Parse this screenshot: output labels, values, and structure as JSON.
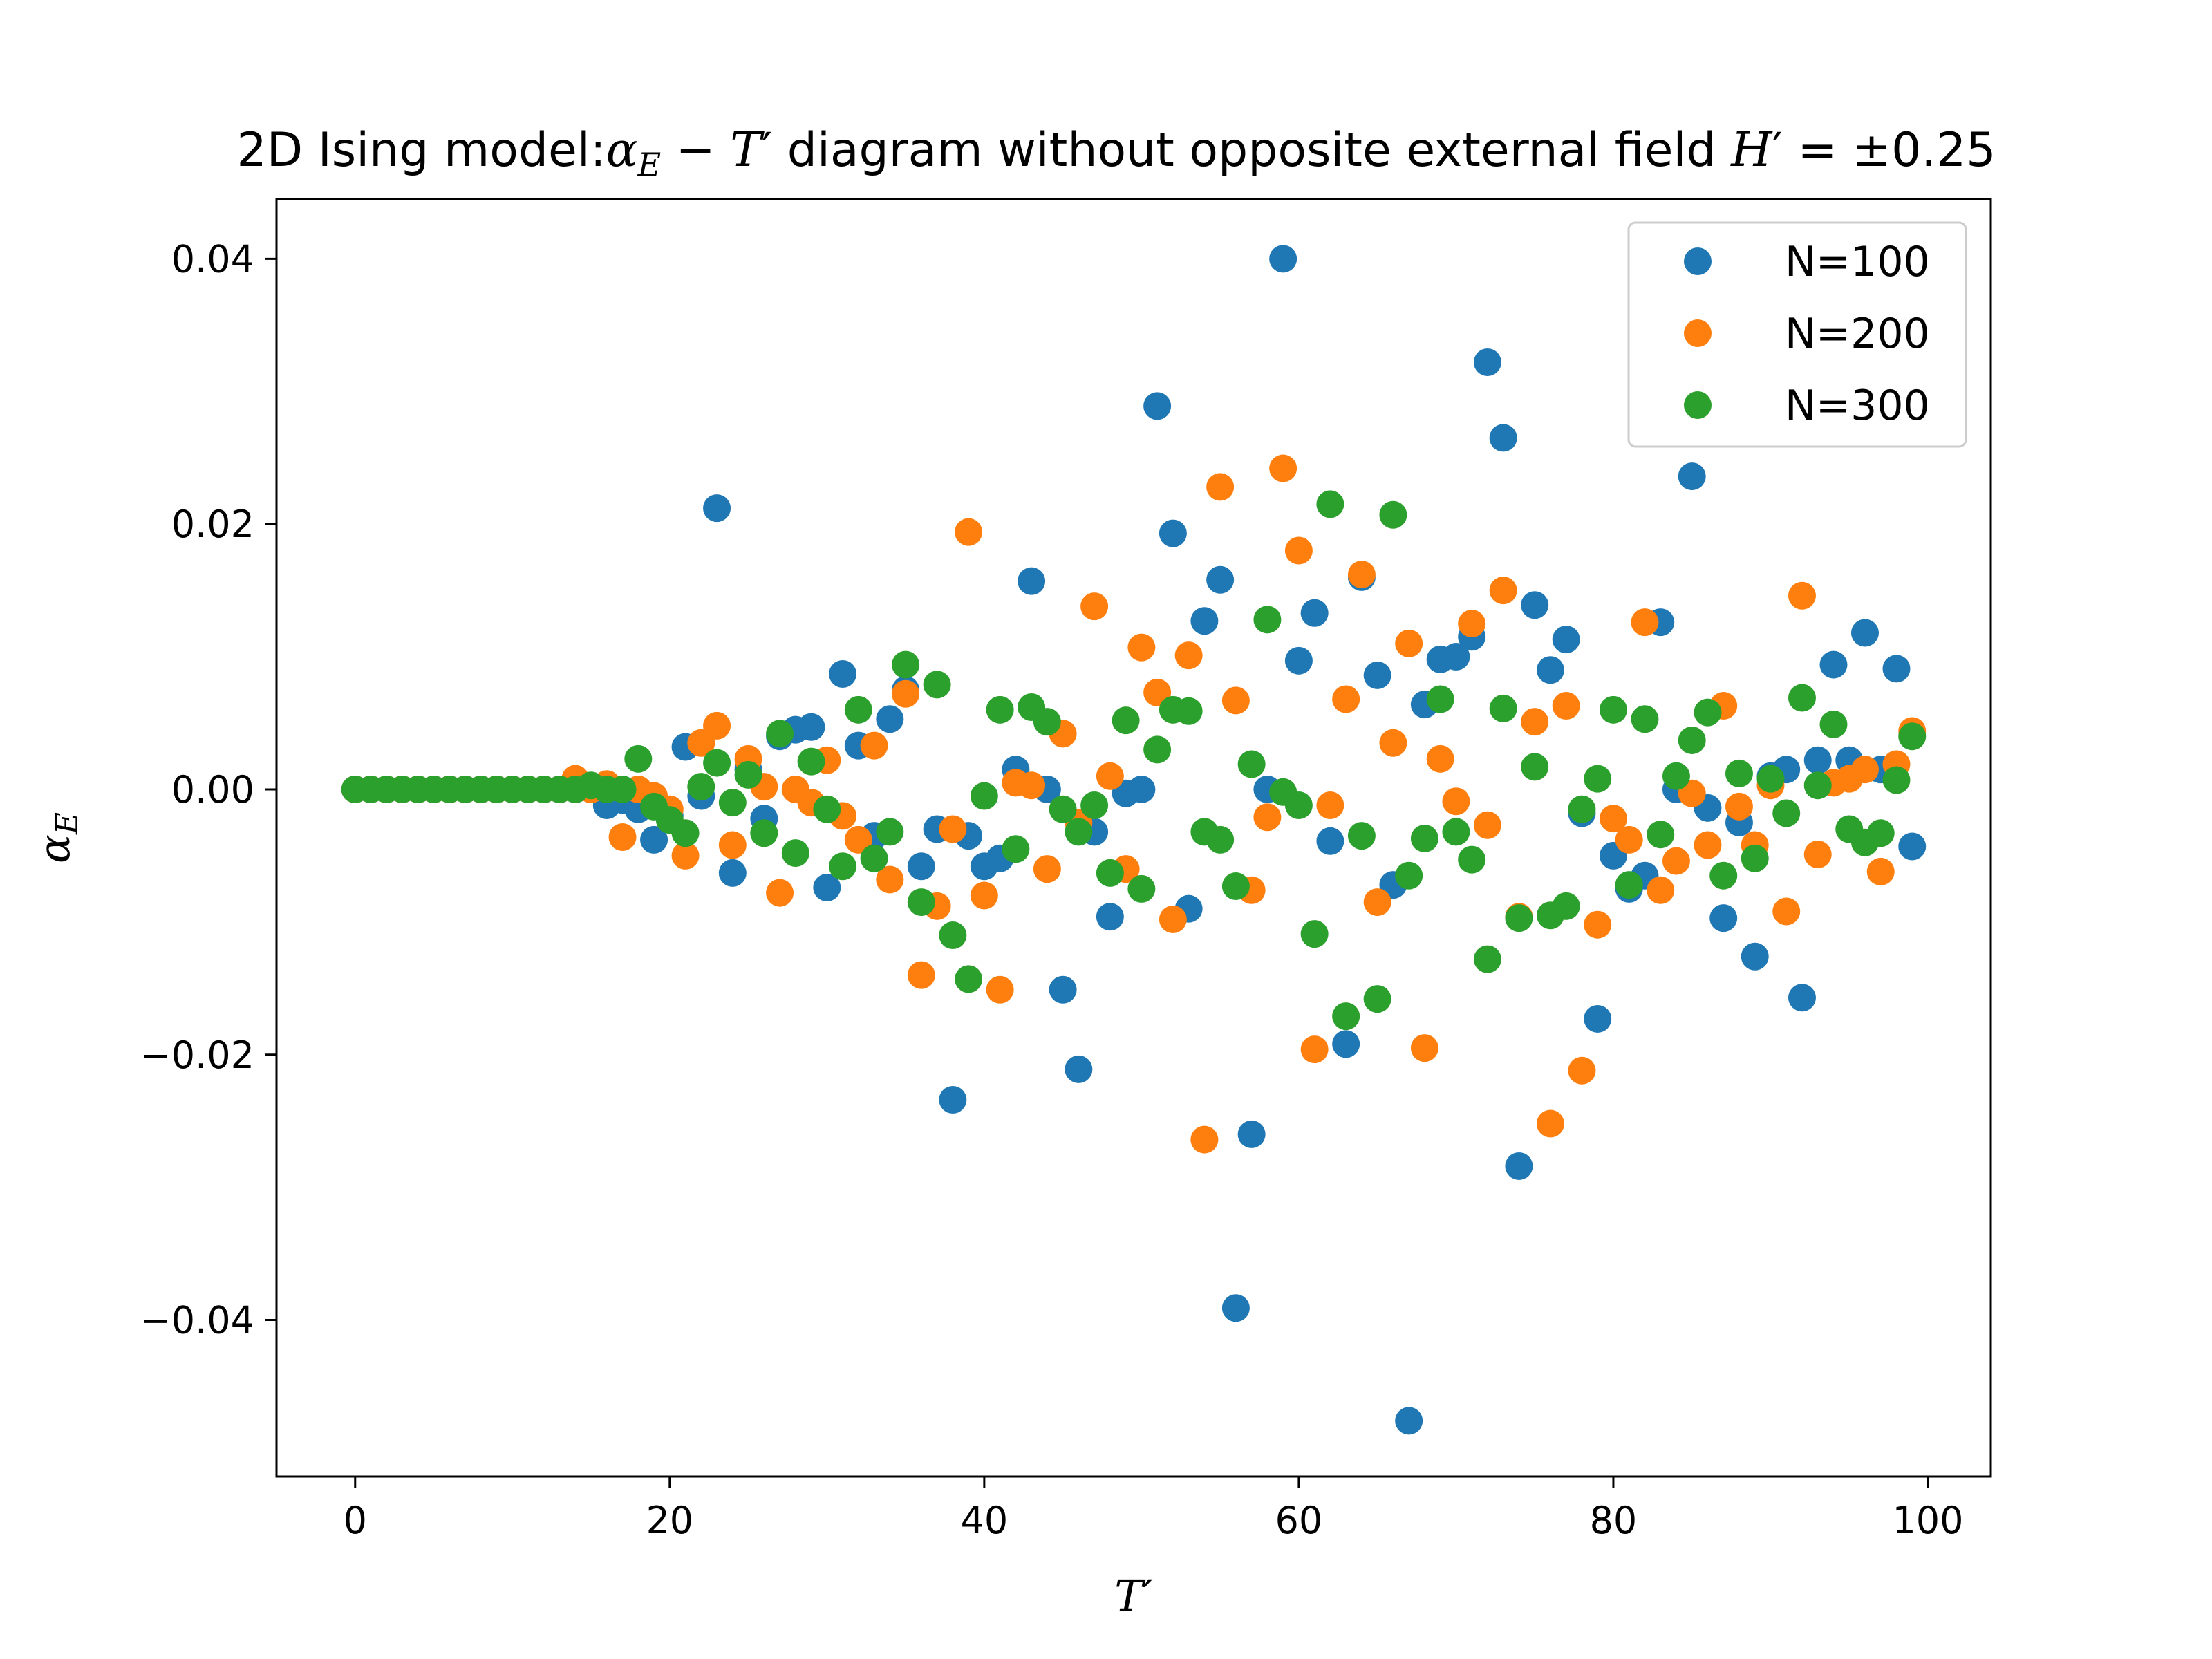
{
  "chart_data": {
    "type": "scatter",
    "title": "2D Ising model:αE − T′ diagram without opposite external field H′ = ±0.25",
    "title_parts": {
      "prefix": "2D Ising model:",
      "alpha": "α",
      "alpha_sub": "E",
      "minus": " − ",
      "T": "T",
      "prime": "′",
      "middle": " diagram without opposite external field ",
      "H": "H",
      "eq": "′ = ±0.25"
    },
    "xlabel": "T′",
    "ylabel": "αE",
    "ylabel_parts": {
      "alpha": "α",
      "sub": "E"
    },
    "xlim": [
      -5,
      104
    ],
    "ylim": [
      -0.0518,
      0.0445
    ],
    "xticks": [
      0,
      20,
      40,
      60,
      80,
      100
    ],
    "xtick_labels": [
      "0",
      "20",
      "40",
      "60",
      "80",
      "100"
    ],
    "yticks": [
      -0.04,
      -0.02,
      0.0,
      0.02,
      0.04
    ],
    "ytick_labels": [
      "−0.04",
      "−0.02",
      "0.00",
      "0.02",
      "0.04"
    ],
    "grid": false,
    "legend": "top-right",
    "series": [
      {
        "name": "N=100",
        "color": "#1f77b4",
        "points": [
          [
            0,
            0
          ],
          [
            1,
            0
          ],
          [
            2,
            0
          ],
          [
            3,
            0
          ],
          [
            4,
            0
          ],
          [
            5,
            0
          ],
          [
            6,
            0
          ],
          [
            7,
            0
          ],
          [
            8,
            0
          ],
          [
            9,
            0
          ],
          [
            10,
            0
          ],
          [
            11,
            0
          ],
          [
            12,
            0
          ],
          [
            13,
            0
          ],
          [
            14,
            0
          ],
          [
            15,
            0
          ],
          [
            16,
            -0.0012
          ],
          [
            17,
            -0.0008
          ],
          [
            18,
            -0.0015
          ],
          [
            19,
            -0.0038
          ],
          [
            20,
            -0.002
          ],
          [
            21,
            0.0032
          ],
          [
            22,
            -0.0005
          ],
          [
            23,
            0.0212
          ],
          [
            24,
            -0.0063
          ],
          [
            25,
            0.0015
          ],
          [
            26,
            -0.0022
          ],
          [
            27,
            0.004
          ],
          [
            28,
            0.0045
          ],
          [
            29,
            0.0047
          ],
          [
            30,
            -0.0074
          ],
          [
            31,
            0.0087
          ],
          [
            32,
            0.0033
          ],
          [
            33,
            -0.0035
          ],
          [
            34,
            0.0053
          ],
          [
            35,
            0.0075
          ],
          [
            36,
            -0.0058
          ],
          [
            37,
            -0.003
          ],
          [
            38,
            -0.0234
          ],
          [
            39,
            -0.0035
          ],
          [
            40,
            -0.0058
          ],
          [
            41,
            -0.0052
          ],
          [
            42,
            0.0015
          ],
          [
            43,
            0.0157
          ],
          [
            44,
            0
          ],
          [
            45,
            -0.0151
          ],
          [
            46,
            -0.0211
          ],
          [
            47,
            -0.0032
          ],
          [
            48,
            -0.0096
          ],
          [
            49,
            -0.0003
          ],
          [
            50,
            0
          ],
          [
            51,
            0.0289
          ],
          [
            52,
            0.0193
          ],
          [
            53,
            -0.009
          ],
          [
            54,
            0.0127
          ],
          [
            55,
            0.0158
          ],
          [
            56,
            -0.0391
          ],
          [
            57,
            -0.026
          ],
          [
            58,
            0
          ],
          [
            59,
            0.04
          ],
          [
            60,
            0.0097
          ],
          [
            61,
            0.0133
          ],
          [
            62,
            -0.0039
          ],
          [
            63,
            -0.0192
          ],
          [
            64,
            0.016
          ],
          [
            65,
            0.0086
          ],
          [
            66,
            -0.0072
          ],
          [
            67,
            -0.0476
          ],
          [
            68,
            0.0064
          ],
          [
            69,
            0.0098
          ],
          [
            70,
            0.01
          ],
          [
            71,
            0.0115
          ],
          [
            72,
            0.0322
          ],
          [
            73,
            0.0265
          ],
          [
            74,
            -0.0284
          ],
          [
            75,
            0.0139
          ],
          [
            76,
            0.009
          ],
          [
            77,
            0.0113
          ],
          [
            78,
            -0.0018
          ],
          [
            79,
            -0.0173
          ],
          [
            80,
            -0.005
          ],
          [
            81,
            -0.0075
          ],
          [
            82,
            -0.0065
          ],
          [
            83,
            0.0126
          ],
          [
            84,
            0
          ],
          [
            85,
            0.0236
          ],
          [
            86,
            -0.0014
          ],
          [
            87,
            -0.0097
          ],
          [
            88,
            -0.0025
          ],
          [
            89,
            -0.0126
          ],
          [
            90,
            0.001
          ],
          [
            91,
            0.0015
          ],
          [
            92,
            -0.0157
          ],
          [
            93,
            0.0022
          ],
          [
            94,
            0.0094
          ],
          [
            95,
            0.0022
          ],
          [
            96,
            0.0118
          ],
          [
            97,
            0.0015
          ],
          [
            98,
            0.0091
          ],
          [
            99,
            -0.0043
          ]
        ]
      },
      {
        "name": "N=200",
        "color": "#ff7f0e",
        "points": [
          [
            0,
            0
          ],
          [
            1,
            0
          ],
          [
            2,
            0
          ],
          [
            3,
            0
          ],
          [
            4,
            0
          ],
          [
            5,
            0
          ],
          [
            6,
            0
          ],
          [
            7,
            0
          ],
          [
            8,
            0
          ],
          [
            9,
            0
          ],
          [
            10,
            0
          ],
          [
            11,
            0
          ],
          [
            12,
            0
          ],
          [
            13,
            0
          ],
          [
            14,
            0.0008
          ],
          [
            15,
            0
          ],
          [
            16,
            0.0004
          ],
          [
            17,
            -0.0036
          ],
          [
            18,
            0
          ],
          [
            19,
            -0.0005
          ],
          [
            20,
            -0.0015
          ],
          [
            21,
            -0.005
          ],
          [
            22,
            0.0035
          ],
          [
            23,
            0.0048
          ],
          [
            24,
            -0.0042
          ],
          [
            25,
            0.0023
          ],
          [
            26,
            0.0002
          ],
          [
            27,
            -0.0078
          ],
          [
            28,
            0
          ],
          [
            29,
            -0.001
          ],
          [
            30,
            0.0022
          ],
          [
            31,
            -0.002
          ],
          [
            32,
            -0.0038
          ],
          [
            33,
            0.0033
          ],
          [
            34,
            -0.0068
          ],
          [
            35,
            0.0072
          ],
          [
            36,
            -0.014
          ],
          [
            37,
            -0.0088
          ],
          [
            38,
            -0.003
          ],
          [
            39,
            0.0194
          ],
          [
            40,
            -0.008
          ],
          [
            41,
            -0.0151
          ],
          [
            42,
            0.0005
          ],
          [
            43,
            0.0003
          ],
          [
            44,
            -0.006
          ],
          [
            45,
            0.0042
          ],
          [
            46,
            -0.0025
          ],
          [
            47,
            0.0138
          ],
          [
            48,
            0.001
          ],
          [
            49,
            -0.006
          ],
          [
            50,
            0.0107
          ],
          [
            51,
            0.0073
          ],
          [
            52,
            -0.0098
          ],
          [
            53,
            0.0101
          ],
          [
            54,
            -0.0264
          ],
          [
            55,
            0.0228
          ],
          [
            56,
            0.0067
          ],
          [
            57,
            -0.0076
          ],
          [
            58,
            -0.0021
          ],
          [
            59,
            0.0242
          ],
          [
            60,
            0.018
          ],
          [
            61,
            -0.0196
          ],
          [
            62,
            -0.0012
          ],
          [
            63,
            0.0068
          ],
          [
            64,
            0.0162
          ],
          [
            65,
            -0.0085
          ],
          [
            66,
            0.0035
          ],
          [
            67,
            0.011
          ],
          [
            68,
            -0.0195
          ],
          [
            69,
            0.0023
          ],
          [
            70,
            -0.0009
          ],
          [
            71,
            0.0125
          ],
          [
            72,
            -0.0027
          ],
          [
            73,
            0.015
          ],
          [
            74,
            -0.0096
          ],
          [
            75,
            0.0051
          ],
          [
            76,
            -0.0252
          ],
          [
            77,
            0.0063
          ],
          [
            78,
            -0.0212
          ],
          [
            79,
            -0.0102
          ],
          [
            80,
            -0.0022
          ],
          [
            81,
            -0.0038
          ],
          [
            82,
            0.0126
          ],
          [
            83,
            -0.0076
          ],
          [
            84,
            -0.0054
          ],
          [
            85,
            -0.0003
          ],
          [
            86,
            -0.0042
          ],
          [
            87,
            0.0063
          ],
          [
            88,
            -0.0013
          ],
          [
            89,
            -0.0042
          ],
          [
            90,
            0.0003
          ],
          [
            91,
            -0.0092
          ],
          [
            92,
            0.0146
          ],
          [
            93,
            -0.0049
          ],
          [
            94,
            0.0005
          ],
          [
            95,
            0.0008
          ],
          [
            96,
            0.0015
          ],
          [
            97,
            -0.0062
          ],
          [
            98,
            0.0019
          ],
          [
            99,
            0.0044
          ]
        ]
      },
      {
        "name": "N=300",
        "color": "#2ca02c",
        "points": [
          [
            0,
            0
          ],
          [
            1,
            0
          ],
          [
            2,
            0
          ],
          [
            3,
            0
          ],
          [
            4,
            0
          ],
          [
            5,
            0
          ],
          [
            6,
            0
          ],
          [
            7,
            0
          ],
          [
            8,
            0
          ],
          [
            9,
            0
          ],
          [
            10,
            0
          ],
          [
            11,
            0
          ],
          [
            12,
            0
          ],
          [
            13,
            0
          ],
          [
            14,
            0
          ],
          [
            15,
            0.0003
          ],
          [
            16,
            0
          ],
          [
            17,
            0
          ],
          [
            18,
            0.0023
          ],
          [
            19,
            -0.0013
          ],
          [
            20,
            -0.0023
          ],
          [
            21,
            -0.0033
          ],
          [
            22,
            0.0002
          ],
          [
            23,
            0.002
          ],
          [
            24,
            -0.001
          ],
          [
            25,
            0.0011
          ],
          [
            26,
            -0.0033
          ],
          [
            27,
            0.0042
          ],
          [
            28,
            -0.0048
          ],
          [
            29,
            0.0021
          ],
          [
            30,
            -0.0015
          ],
          [
            31,
            -0.0058
          ],
          [
            32,
            0.006
          ],
          [
            33,
            -0.0052
          ],
          [
            34,
            -0.0032
          ],
          [
            35,
            0.0094
          ],
          [
            36,
            -0.0085
          ],
          [
            37,
            0.0079
          ],
          [
            38,
            -0.011
          ],
          [
            39,
            -0.0143
          ],
          [
            40,
            -0.0005
          ],
          [
            41,
            0.006
          ],
          [
            42,
            -0.0045
          ],
          [
            43,
            0.0062
          ],
          [
            44,
            0.0051
          ],
          [
            45,
            -0.0015
          ],
          [
            46,
            -0.0032
          ],
          [
            47,
            -0.0012
          ],
          [
            48,
            -0.0063
          ],
          [
            49,
            0.0052
          ],
          [
            50,
            -0.0075
          ],
          [
            51,
            0.003
          ],
          [
            52,
            0.006
          ],
          [
            53,
            0.0059
          ],
          [
            54,
            -0.0032
          ],
          [
            55,
            -0.0038
          ],
          [
            56,
            -0.0073
          ],
          [
            57,
            0.0019
          ],
          [
            58,
            0.0128
          ],
          [
            59,
            -0.0002
          ],
          [
            60,
            -0.0012
          ],
          [
            61,
            -0.0109
          ],
          [
            62,
            0.0215
          ],
          [
            63,
            -0.0171
          ],
          [
            64,
            -0.0035
          ],
          [
            65,
            -0.0158
          ],
          [
            66,
            0.0207
          ],
          [
            67,
            -0.0065
          ],
          [
            68,
            -0.0037
          ],
          [
            69,
            0.0068
          ],
          [
            70,
            -0.0032
          ],
          [
            71,
            -0.0053
          ],
          [
            72,
            -0.0128
          ],
          [
            73,
            0.0061
          ],
          [
            74,
            -0.0097
          ],
          [
            75,
            0.0017
          ],
          [
            76,
            -0.0095
          ],
          [
            77,
            -0.0088
          ],
          [
            78,
            -0.0015
          ],
          [
            79,
            0.0008
          ],
          [
            80,
            0.006
          ],
          [
            81,
            -0.0072
          ],
          [
            82,
            0.0053
          ],
          [
            83,
            -0.0034
          ],
          [
            84,
            0.001
          ],
          [
            85,
            0.0037
          ],
          [
            86,
            0.0058
          ],
          [
            87,
            -0.0065
          ],
          [
            88,
            0.0012
          ],
          [
            89,
            -0.0052
          ],
          [
            90,
            0.0008
          ],
          [
            91,
            -0.0018
          ],
          [
            92,
            0.0069
          ],
          [
            93,
            0.0003
          ],
          [
            94,
            0.0049
          ],
          [
            95,
            -0.003
          ],
          [
            96,
            -0.004
          ],
          [
            97,
            -0.0033
          ],
          [
            98,
            0.0007
          ],
          [
            99,
            0.004
          ]
        ]
      }
    ]
  }
}
